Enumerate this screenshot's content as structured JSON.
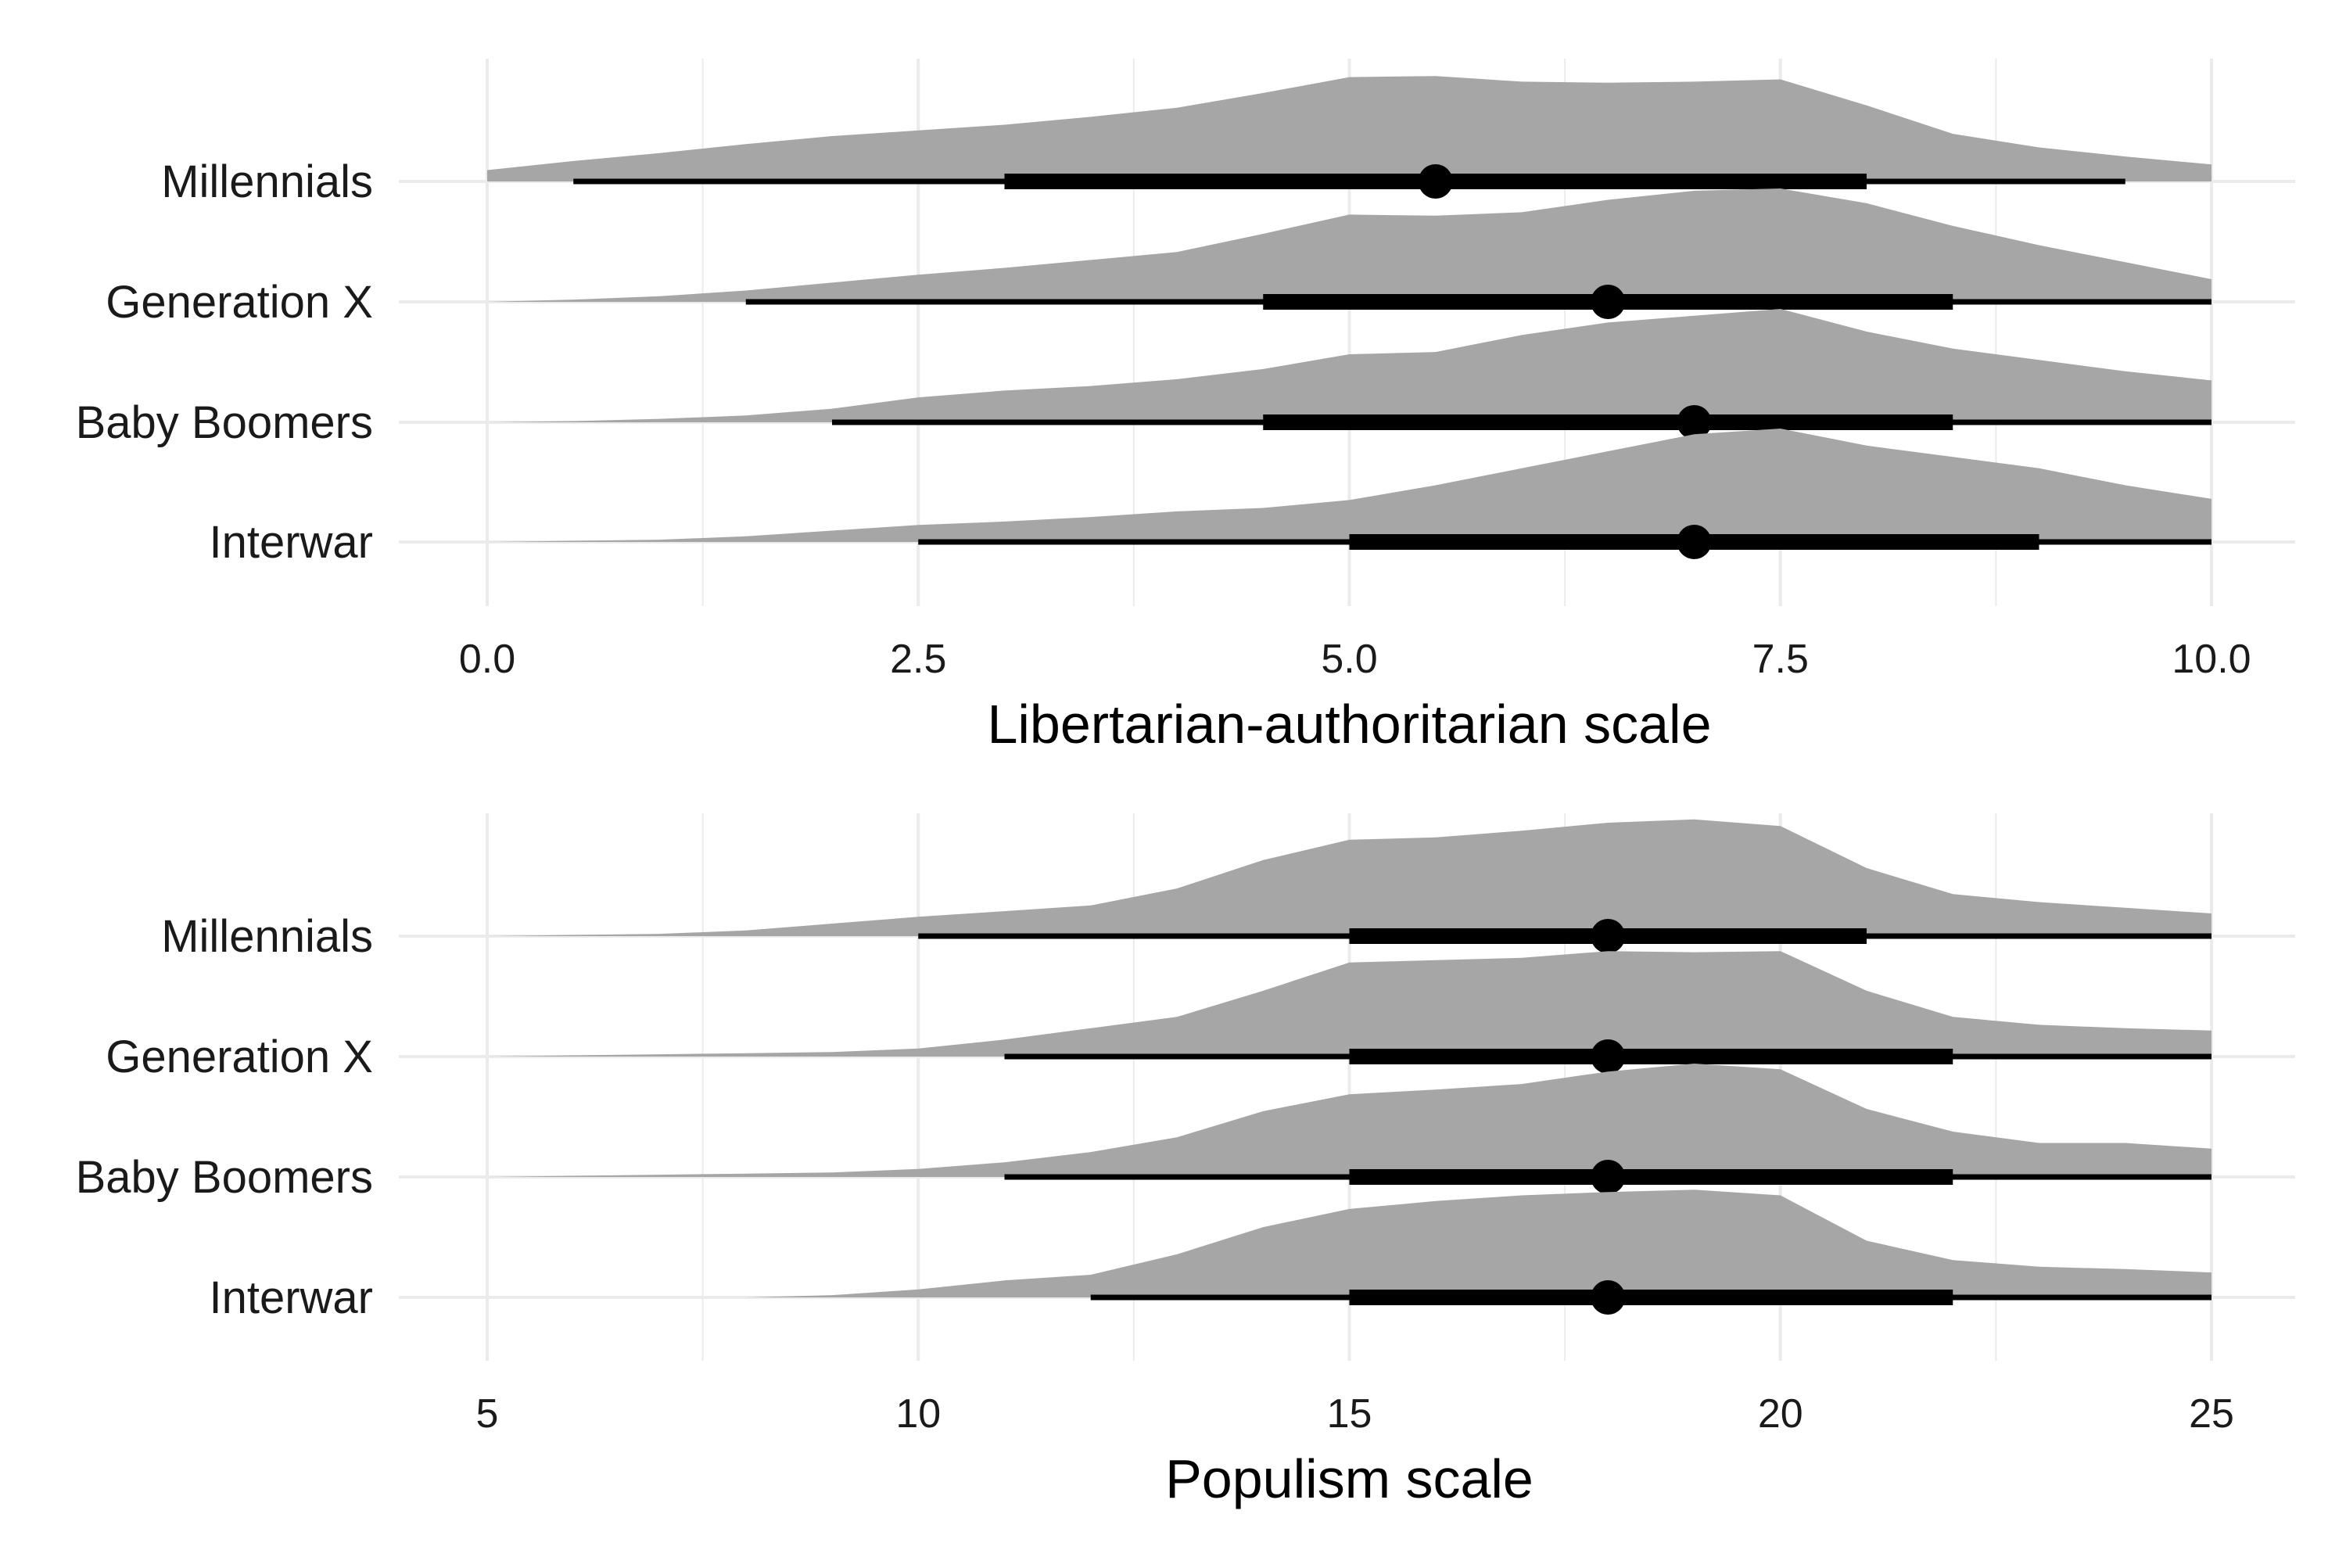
{
  "chart_data": [
    {
      "type": "halfeye",
      "xlabel": "Libertarian-authoritarian scale",
      "xlim": [
        0,
        10
      ],
      "x_ticks": [
        0,
        2.5,
        5,
        7.5,
        10
      ],
      "x_tick_labels": [
        "0.0",
        "2.5",
        "5.0",
        "7.5",
        "10.0"
      ],
      "x_minor_ticks": [
        1.25,
        3.75,
        6.25,
        8.75
      ],
      "categories": [
        "Millennials",
        "Generation X",
        "Baby Boomers",
        "Interwar"
      ],
      "grid": true,
      "colors": {
        "density": "#a6a6a6",
        "interval": "#000000",
        "grid": "#ebebeb"
      },
      "series": [
        {
          "category": "Millennials",
          "median": 5.5,
          "interval_66": [
            3,
            8
          ],
          "interval_95": [
            0.5,
            9.5
          ],
          "density": [
            [
              0,
              0.1
            ],
            [
              0.5,
              0.18
            ],
            [
              1,
              0.25
            ],
            [
              1.5,
              0.33
            ],
            [
              2,
              0.4
            ],
            [
              2.5,
              0.45
            ],
            [
              3,
              0.5
            ],
            [
              3.5,
              0.57
            ],
            [
              4,
              0.65
            ],
            [
              4.5,
              0.78
            ],
            [
              5,
              0.92
            ],
            [
              5.5,
              0.93
            ],
            [
              6,
              0.88
            ],
            [
              6.5,
              0.87
            ],
            [
              7,
              0.88
            ],
            [
              7.5,
              0.9
            ],
            [
              8,
              0.67
            ],
            [
              8.5,
              0.42
            ],
            [
              9,
              0.3
            ],
            [
              9.5,
              0.22
            ],
            [
              10,
              0.15
            ]
          ]
        },
        {
          "category": "Generation X",
          "median": 6.5,
          "interval_66": [
            4.5,
            8.5
          ],
          "interval_95": [
            1.5,
            10
          ],
          "density": [
            [
              0,
              0
            ],
            [
              0.5,
              0.02
            ],
            [
              1,
              0.05
            ],
            [
              1.5,
              0.1
            ],
            [
              2,
              0.17
            ],
            [
              2.5,
              0.24
            ],
            [
              3,
              0.3
            ],
            [
              3.5,
              0.37
            ],
            [
              4,
              0.44
            ],
            [
              4.5,
              0.6
            ],
            [
              5,
              0.77
            ],
            [
              5.5,
              0.76
            ],
            [
              6,
              0.79
            ],
            [
              6.5,
              0.9
            ],
            [
              7,
              0.98
            ],
            [
              7.5,
              1.0
            ],
            [
              8,
              0.87
            ],
            [
              8.5,
              0.67
            ],
            [
              9,
              0.5
            ],
            [
              9.5,
              0.35
            ],
            [
              10,
              0.2
            ]
          ]
        },
        {
          "category": "Baby Boomers",
          "median": 7,
          "interval_66": [
            4.5,
            8.5
          ],
          "interval_95": [
            2,
            10
          ],
          "density": [
            [
              0,
              0
            ],
            [
              0.5,
              0.01
            ],
            [
              1,
              0.03
            ],
            [
              1.5,
              0.06
            ],
            [
              2,
              0.12
            ],
            [
              2.5,
              0.22
            ],
            [
              3,
              0.28
            ],
            [
              3.5,
              0.32
            ],
            [
              4,
              0.38
            ],
            [
              4.5,
              0.47
            ],
            [
              5,
              0.6
            ],
            [
              5.5,
              0.62
            ],
            [
              6,
              0.77
            ],
            [
              6.5,
              0.88
            ],
            [
              7,
              0.94
            ],
            [
              7.5,
              1.0
            ],
            [
              8,
              0.8
            ],
            [
              8.5,
              0.65
            ],
            [
              9,
              0.55
            ],
            [
              9.5,
              0.45
            ],
            [
              10,
              0.37
            ]
          ]
        },
        {
          "category": "Interwar",
          "median": 7,
          "interval_66": [
            5,
            9
          ],
          "interval_95": [
            2.5,
            10
          ],
          "density": [
            [
              0,
              0
            ],
            [
              0.5,
              0.01
            ],
            [
              1,
              0.02
            ],
            [
              1.5,
              0.05
            ],
            [
              2,
              0.1
            ],
            [
              2.5,
              0.15
            ],
            [
              3,
              0.18
            ],
            [
              3.5,
              0.22
            ],
            [
              4,
              0.27
            ],
            [
              4.5,
              0.3
            ],
            [
              5,
              0.37
            ],
            [
              5.5,
              0.5
            ],
            [
              6,
              0.65
            ],
            [
              6.5,
              0.8
            ],
            [
              7,
              0.95
            ],
            [
              7.5,
              1.0
            ],
            [
              8,
              0.85
            ],
            [
              8.5,
              0.75
            ],
            [
              9,
              0.65
            ],
            [
              9.5,
              0.5
            ],
            [
              10,
              0.38
            ]
          ]
        }
      ]
    },
    {
      "type": "halfeye",
      "xlabel": "Populism scale",
      "xlim": [
        5,
        25
      ],
      "x_ticks": [
        5,
        10,
        15,
        20,
        25
      ],
      "x_tick_labels": [
        "5",
        "10",
        "15",
        "20",
        "25"
      ],
      "x_minor_ticks": [
        7.5,
        12.5,
        17.5,
        22.5
      ],
      "categories": [
        "Millennials",
        "Generation X",
        "Baby Boomers",
        "Interwar"
      ],
      "grid": true,
      "colors": {
        "density": "#a6a6a6",
        "interval": "#000000",
        "grid": "#ebebeb"
      },
      "series": [
        {
          "category": "Millennials",
          "median": 18,
          "interval_66": [
            15,
            21
          ],
          "interval_95": [
            10,
            25
          ],
          "density": [
            [
              5,
              0
            ],
            [
              6,
              0.01
            ],
            [
              7,
              0.02
            ],
            [
              8,
              0.05
            ],
            [
              9,
              0.11
            ],
            [
              10,
              0.17
            ],
            [
              11,
              0.22
            ],
            [
              12,
              0.27
            ],
            [
              13,
              0.42
            ],
            [
              14,
              0.67
            ],
            [
              15,
              0.85
            ],
            [
              16,
              0.87
            ],
            [
              17,
              0.93
            ],
            [
              18,
              1.0
            ],
            [
              19,
              1.03
            ],
            [
              20,
              0.97
            ],
            [
              21,
              0.6
            ],
            [
              22,
              0.37
            ],
            [
              23,
              0.3
            ],
            [
              24,
              0.25
            ],
            [
              25,
              0.2
            ]
          ]
        },
        {
          "category": "Generation X",
          "median": 18,
          "interval_66": [
            15,
            22
          ],
          "interval_95": [
            11,
            25
          ],
          "density": [
            [
              5,
              0
            ],
            [
              6,
              0.01
            ],
            [
              7,
              0.02
            ],
            [
              8,
              0.03
            ],
            [
              9,
              0.04
            ],
            [
              10,
              0.07
            ],
            [
              11,
              0.15
            ],
            [
              12,
              0.25
            ],
            [
              13,
              0.35
            ],
            [
              14,
              0.58
            ],
            [
              15,
              0.83
            ],
            [
              16,
              0.85
            ],
            [
              17,
              0.87
            ],
            [
              18,
              0.93
            ],
            [
              19,
              0.92
            ],
            [
              20,
              0.93
            ],
            [
              21,
              0.58
            ],
            [
              22,
              0.35
            ],
            [
              23,
              0.28
            ],
            [
              24,
              0.25
            ],
            [
              25,
              0.23
            ]
          ]
        },
        {
          "category": "Baby Boomers",
          "median": 18,
          "interval_66": [
            15,
            22
          ],
          "interval_95": [
            11,
            25
          ],
          "density": [
            [
              5,
              0
            ],
            [
              6,
              0.01
            ],
            [
              7,
              0.02
            ],
            [
              8,
              0.03
            ],
            [
              9,
              0.04
            ],
            [
              10,
              0.07
            ],
            [
              11,
              0.13
            ],
            [
              12,
              0.22
            ],
            [
              13,
              0.35
            ],
            [
              14,
              0.58
            ],
            [
              15,
              0.73
            ],
            [
              16,
              0.77
            ],
            [
              17,
              0.82
            ],
            [
              18,
              0.93
            ],
            [
              19,
              1.0
            ],
            [
              20,
              0.95
            ],
            [
              21,
              0.6
            ],
            [
              22,
              0.4
            ],
            [
              23,
              0.3
            ],
            [
              24,
              0.3
            ],
            [
              25,
              0.25
            ]
          ]
        },
        {
          "category": "Interwar",
          "median": 18,
          "interval_66": [
            15,
            22
          ],
          "interval_95": [
            12,
            25
          ],
          "density": [
            [
              5,
              0
            ],
            [
              6,
              0
            ],
            [
              7,
              0
            ],
            [
              8,
              0
            ],
            [
              9,
              0.02
            ],
            [
              10,
              0.07
            ],
            [
              11,
              0.15
            ],
            [
              12,
              0.2
            ],
            [
              13,
              0.38
            ],
            [
              14,
              0.62
            ],
            [
              15,
              0.78
            ],
            [
              16,
              0.85
            ],
            [
              17,
              0.9
            ],
            [
              18,
              0.93
            ],
            [
              19,
              0.95
            ],
            [
              20,
              0.9
            ],
            [
              21,
              0.5
            ],
            [
              22,
              0.33
            ],
            [
              23,
              0.27
            ],
            [
              24,
              0.25
            ],
            [
              25,
              0.22
            ]
          ]
        }
      ]
    }
  ]
}
